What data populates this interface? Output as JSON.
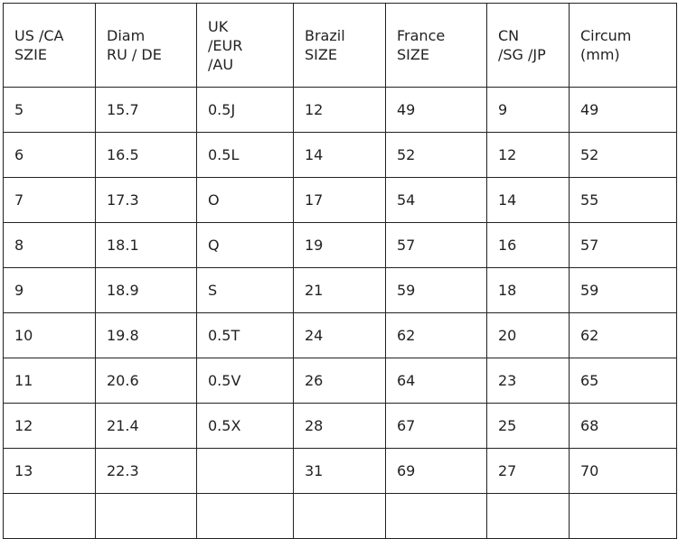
{
  "table": {
    "headers": [
      "US /CA\nSZIE",
      "Diam\nRU / DE",
      "UK\n/EUR\n/AU",
      "Brazil\nSIZE",
      "France\nSIZE",
      "CN\n/SG /JP",
      "Circum\n(mm)"
    ],
    "rows": [
      [
        "5",
        "15.7",
        "0.5J",
        "12",
        "49",
        "9",
        "49"
      ],
      [
        "6",
        "16.5",
        "0.5L",
        "14",
        "52",
        "12",
        "52"
      ],
      [
        "7",
        "17.3",
        "O",
        "17",
        "54",
        "14",
        "55"
      ],
      [
        "8",
        "18.1",
        "Q",
        "19",
        "57",
        "16",
        "57"
      ],
      [
        "9",
        "18.9",
        "S",
        "21",
        "59",
        "18",
        "59"
      ],
      [
        "10",
        "19.8",
        "0.5T",
        "24",
        "62",
        "20",
        "62"
      ],
      [
        "11",
        "20.6",
        "0.5V",
        "26",
        "64",
        "23",
        "65"
      ],
      [
        "12",
        "21.4",
        "0.5X",
        "28",
        "67",
        "25",
        "68"
      ],
      [
        "13",
        "22.3",
        "",
        "31",
        "69",
        "27",
        "70"
      ]
    ]
  }
}
